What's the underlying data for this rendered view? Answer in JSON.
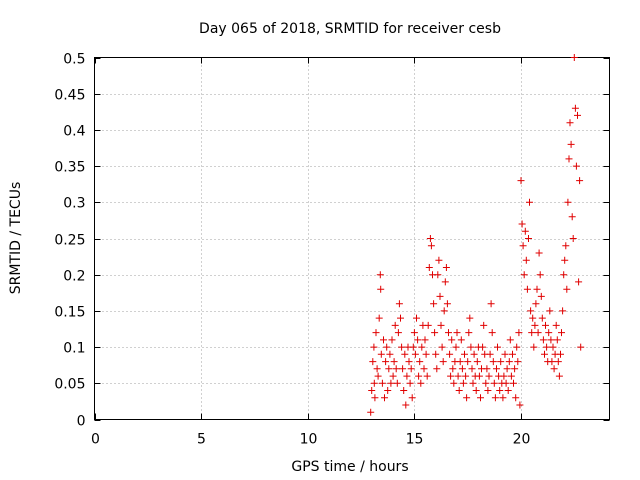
{
  "chart_data": {
    "type": "scatter",
    "title": "Day 065 of 2018, SRMTID for receiver cesb",
    "xlabel": "GPS time / hours",
    "ylabel": "SRMTID / TECUs",
    "xlim": [
      0,
      24.15
    ],
    "ylim": [
      0,
      0.5
    ],
    "x_ticks": [
      0,
      5,
      10,
      15,
      20
    ],
    "y_ticks": [
      0,
      0.05,
      0.1,
      0.15,
      0.2,
      0.25,
      0.3,
      0.35,
      0.4,
      0.45,
      0.5
    ],
    "x_tick_labels": [
      "0",
      "5",
      "10",
      "15",
      "20"
    ],
    "y_tick_labels": [
      "0",
      "0.05",
      "0.1",
      "0.15",
      "0.2",
      "0.25",
      "0.3",
      "0.35",
      "0.4",
      "0.45",
      "0.5"
    ],
    "grid": true,
    "marker": "plus",
    "marker_color": "#e00000",
    "series": [
      {
        "values": [
          [
            12.95,
            0.01
          ],
          [
            13.0,
            0.04
          ],
          [
            13.05,
            0.08
          ],
          [
            13.1,
            0.1
          ],
          [
            13.12,
            0.05
          ],
          [
            13.15,
            0.03
          ],
          [
            13.2,
            0.12
          ],
          [
            13.25,
            0.07
          ],
          [
            13.3,
            0.06
          ],
          [
            13.35,
            0.14
          ],
          [
            13.4,
            0.2
          ],
          [
            13.42,
            0.18
          ],
          [
            13.45,
            0.09
          ],
          [
            13.5,
            0.05
          ],
          [
            13.55,
            0.11
          ],
          [
            13.6,
            0.03
          ],
          [
            13.65,
            0.08
          ],
          [
            13.7,
            0.1
          ],
          [
            13.75,
            0.04
          ],
          [
            13.8,
            0.07
          ],
          [
            13.85,
            0.09
          ],
          [
            13.9,
            0.05
          ],
          [
            13.95,
            0.11
          ],
          [
            14.0,
            0.06
          ],
          [
            14.05,
            0.08
          ],
          [
            14.1,
            0.13
          ],
          [
            14.15,
            0.07
          ],
          [
            14.2,
            0.05
          ],
          [
            14.25,
            0.12
          ],
          [
            14.3,
            0.16
          ],
          [
            14.35,
            0.14
          ],
          [
            14.4,
            0.1
          ],
          [
            14.45,
            0.07
          ],
          [
            14.5,
            0.04
          ],
          [
            14.55,
            0.09
          ],
          [
            14.6,
            0.02
          ],
          [
            14.65,
            0.06
          ],
          [
            14.7,
            0.1
          ],
          [
            14.75,
            0.08
          ],
          [
            14.8,
            0.05
          ],
          [
            14.85,
            0.07
          ],
          [
            14.9,
            0.03
          ],
          [
            14.95,
            0.1
          ],
          [
            15.0,
            0.12
          ],
          [
            15.05,
            0.09
          ],
          [
            15.1,
            0.14
          ],
          [
            15.15,
            0.11
          ],
          [
            15.2,
            0.06
          ],
          [
            15.25,
            0.08
          ],
          [
            15.3,
            0.05
          ],
          [
            15.35,
            0.1
          ],
          [
            15.4,
            0.13
          ],
          [
            15.45,
            0.07
          ],
          [
            15.5,
            0.11
          ],
          [
            15.55,
            0.09
          ],
          [
            15.6,
            0.06
          ],
          [
            15.65,
            0.13
          ],
          [
            15.7,
            0.21
          ],
          [
            15.75,
            0.25
          ],
          [
            15.8,
            0.24
          ],
          [
            15.85,
            0.2
          ],
          [
            15.9,
            0.16
          ],
          [
            15.95,
            0.12
          ],
          [
            16.0,
            0.09
          ],
          [
            16.05,
            0.07
          ],
          [
            16.1,
            0.2
          ],
          [
            16.15,
            0.22
          ],
          [
            16.2,
            0.17
          ],
          [
            16.25,
            0.13
          ],
          [
            16.3,
            0.1
          ],
          [
            16.35,
            0.08
          ],
          [
            16.4,
            0.15
          ],
          [
            16.45,
            0.19
          ],
          [
            16.5,
            0.21
          ],
          [
            16.55,
            0.16
          ],
          [
            16.6,
            0.12
          ],
          [
            16.65,
            0.09
          ],
          [
            16.7,
            0.06
          ],
          [
            16.75,
            0.11
          ],
          [
            16.8,
            0.07
          ],
          [
            16.85,
            0.05
          ],
          [
            16.9,
            0.08
          ],
          [
            16.95,
            0.1
          ],
          [
            17.0,
            0.12
          ],
          [
            17.05,
            0.06
          ],
          [
            17.1,
            0.04
          ],
          [
            17.15,
            0.08
          ],
          [
            17.2,
            0.11
          ],
          [
            17.25,
            0.07
          ],
          [
            17.3,
            0.05
          ],
          [
            17.35,
            0.09
          ],
          [
            17.4,
            0.06
          ],
          [
            17.45,
            0.03
          ],
          [
            17.5,
            0.08
          ],
          [
            17.55,
            0.12
          ],
          [
            17.6,
            0.14
          ],
          [
            17.65,
            0.1
          ],
          [
            17.7,
            0.07
          ],
          [
            17.75,
            0.05
          ],
          [
            17.8,
            0.09
          ],
          [
            17.85,
            0.06
          ],
          [
            17.9,
            0.04
          ],
          [
            17.95,
            0.08
          ],
          [
            18.0,
            0.1
          ],
          [
            18.05,
            0.06
          ],
          [
            18.1,
            0.03
          ],
          [
            18.15,
            0.07
          ],
          [
            18.2,
            0.1
          ],
          [
            18.25,
            0.13
          ],
          [
            18.3,
            0.09
          ],
          [
            18.35,
            0.05
          ],
          [
            18.4,
            0.07
          ],
          [
            18.45,
            0.04
          ],
          [
            18.5,
            0.06
          ],
          [
            18.55,
            0.09
          ],
          [
            18.6,
            0.16
          ],
          [
            18.65,
            0.12
          ],
          [
            18.7,
            0.08
          ],
          [
            18.75,
            0.05
          ],
          [
            18.8,
            0.03
          ],
          [
            18.85,
            0.07
          ],
          [
            18.9,
            0.1
          ],
          [
            18.95,
            0.06
          ],
          [
            19.0,
            0.04
          ],
          [
            19.05,
            0.08
          ],
          [
            19.1,
            0.05
          ],
          [
            19.15,
            0.03
          ],
          [
            19.2,
            0.06
          ],
          [
            19.25,
            0.09
          ],
          [
            19.3,
            0.05
          ],
          [
            19.35,
            0.07
          ],
          [
            19.4,
            0.04
          ],
          [
            19.45,
            0.08
          ],
          [
            19.5,
            0.11
          ],
          [
            19.55,
            0.06
          ],
          [
            19.6,
            0.09
          ],
          [
            19.65,
            0.05
          ],
          [
            19.7,
            0.07
          ],
          [
            19.75,
            0.03
          ],
          [
            19.8,
            0.1
          ],
          [
            19.85,
            0.08
          ],
          [
            19.9,
            0.12
          ],
          [
            19.95,
            0.02
          ],
          [
            20.0,
            0.33
          ],
          [
            20.05,
            0.27
          ],
          [
            20.1,
            0.24
          ],
          [
            20.15,
            0.2
          ],
          [
            20.2,
            0.26
          ],
          [
            20.25,
            0.22
          ],
          [
            20.3,
            0.18
          ],
          [
            20.35,
            0.25
          ],
          [
            20.4,
            0.3
          ],
          [
            20.45,
            0.15
          ],
          [
            20.5,
            0.12
          ],
          [
            20.55,
            0.14
          ],
          [
            20.6,
            0.1
          ],
          [
            20.65,
            0.13
          ],
          [
            20.7,
            0.16
          ],
          [
            20.75,
            0.18
          ],
          [
            20.8,
            0.12
          ],
          [
            20.85,
            0.23
          ],
          [
            20.9,
            0.2
          ],
          [
            20.95,
            0.17
          ],
          [
            21.0,
            0.14
          ],
          [
            21.05,
            0.11
          ],
          [
            21.1,
            0.09
          ],
          [
            21.15,
            0.13
          ],
          [
            21.2,
            0.1
          ],
          [
            21.25,
            0.08
          ],
          [
            21.3,
            0.12
          ],
          [
            21.35,
            0.15
          ],
          [
            21.4,
            0.11
          ],
          [
            21.45,
            0.08
          ],
          [
            21.5,
            0.1
          ],
          [
            21.55,
            0.07
          ],
          [
            21.6,
            0.09
          ],
          [
            21.65,
            0.13
          ],
          [
            21.7,
            0.11
          ],
          [
            21.75,
            0.08
          ],
          [
            21.8,
            0.06
          ],
          [
            21.85,
            0.09
          ],
          [
            21.9,
            0.12
          ],
          [
            21.95,
            0.15
          ],
          [
            22.0,
            0.2
          ],
          [
            22.05,
            0.22
          ],
          [
            22.1,
            0.24
          ],
          [
            22.15,
            0.18
          ],
          [
            22.2,
            0.3
          ],
          [
            22.25,
            0.36
          ],
          [
            22.3,
            0.41
          ],
          [
            22.35,
            0.38
          ],
          [
            22.4,
            0.28
          ],
          [
            22.45,
            0.25
          ],
          [
            22.5,
            0.5
          ],
          [
            22.55,
            0.43
          ],
          [
            22.6,
            0.35
          ],
          [
            22.65,
            0.42
          ],
          [
            22.7,
            0.19
          ],
          [
            22.75,
            0.33
          ],
          [
            22.8,
            0.1
          ]
        ]
      }
    ]
  }
}
